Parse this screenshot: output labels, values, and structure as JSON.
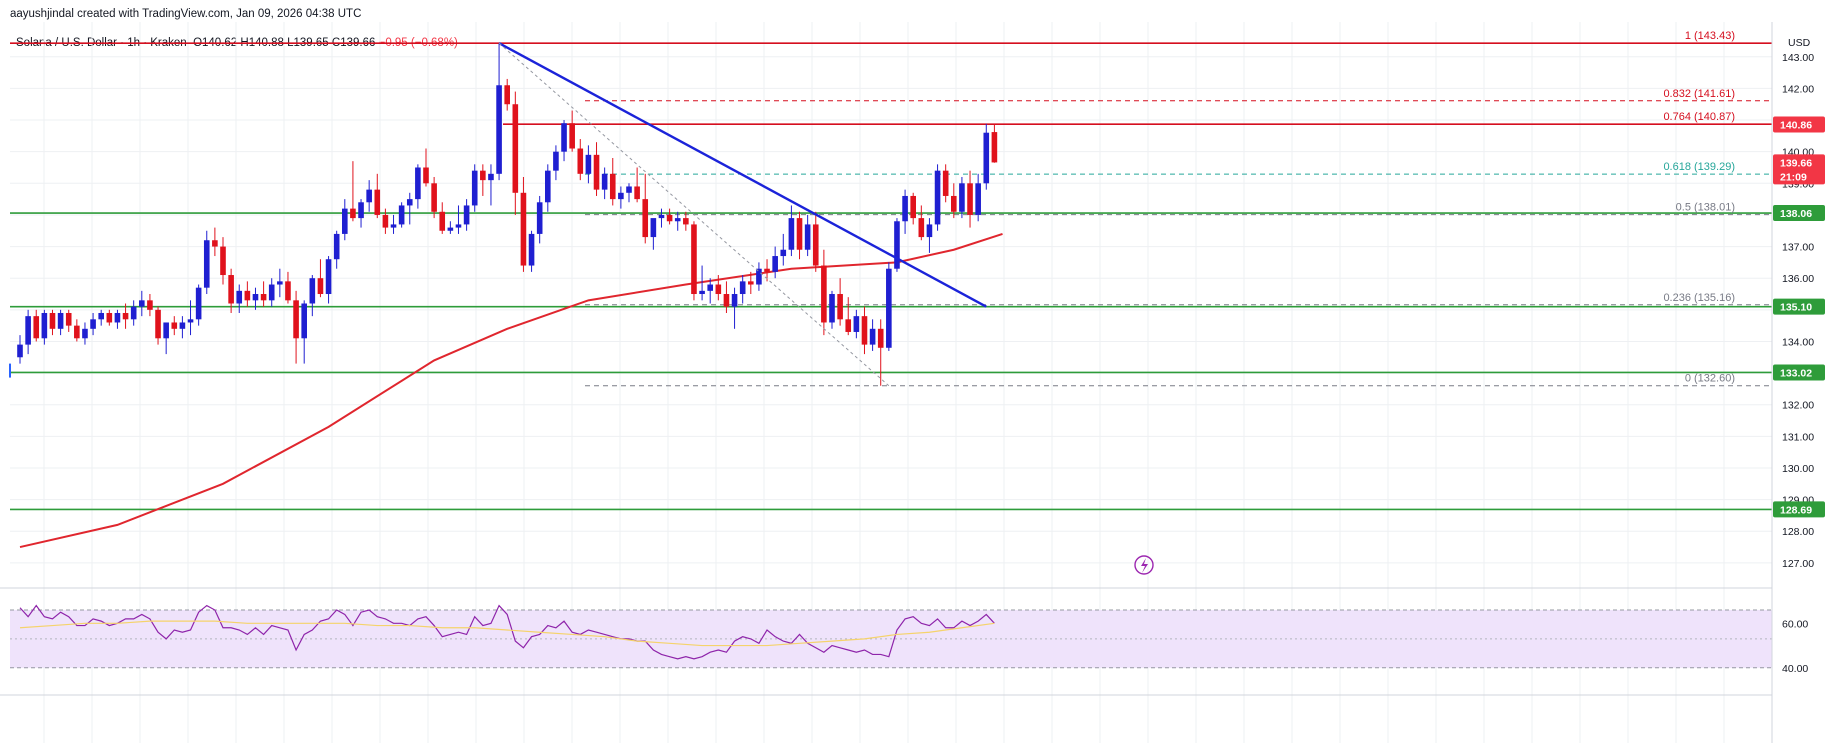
{
  "header": {
    "credit": "aayushjindal created with TradingView.com, Jan 09, 2026 04:38 UTC"
  },
  "legend": {
    "symbol": "Solana / U.S. Dollar · 1h · Kraken",
    "open_label": "O",
    "open": "140.62",
    "high_label": "H",
    "high": "140.88",
    "low_label": "L",
    "low": "139.65",
    "close_label": "C",
    "close": "139.66",
    "change": "−0.95 (−0.68%)"
  },
  "currency": "USD",
  "colors": {
    "up": "#1f1fd1",
    "down": "#e0121c",
    "support_line": "#2e9c3a",
    "resistance_line": "#d50f1f",
    "trend_line": "#1b23d9",
    "moving_average": "#e0262e",
    "fib_line": "#26a69a",
    "rsi": "#8e24aa",
    "rsi_band": "#efe3fb",
    "rsi_ma": "#f5d36b"
  },
  "chart_data": {
    "type": "candlestick",
    "title": "Solana / U.S. Dollar · 1h · Kraken",
    "ylabel": "USD",
    "ylim": [
      126.3,
      144.1
    ],
    "y_ticks": [
      "143.00",
      "142.00",
      "141.00",
      "140.00",
      "139.00",
      "138.00",
      "137.00",
      "136.00",
      "135.00",
      "134.00",
      "133.00",
      "132.00",
      "131.00",
      "130.00",
      "129.00",
      "128.00",
      "127.00"
    ],
    "price_tags": [
      {
        "value": 140.86,
        "label": "140.86",
        "color": "#f23645"
      },
      {
        "value": 139.66,
        "label": "139.66",
        "sub": "21:09",
        "color": "#f23645"
      },
      {
        "value": 138.06,
        "label": "138.06",
        "color": "#2e9c3a"
      },
      {
        "value": 135.1,
        "label": "135.10",
        "color": "#2e9c3a"
      },
      {
        "value": 133.02,
        "label": "133.02",
        "color": "#2e9c3a"
      },
      {
        "value": 128.69,
        "label": "128.69",
        "color": "#2e9c3a"
      }
    ],
    "horizontal_levels": [
      {
        "value": 143.43,
        "kind": "resistance"
      },
      {
        "value": 140.87,
        "kind": "resistance"
      },
      {
        "value": 138.06,
        "kind": "support"
      },
      {
        "value": 135.1,
        "kind": "support"
      },
      {
        "value": 133.02,
        "kind": "support"
      },
      {
        "value": 128.69,
        "kind": "support"
      }
    ],
    "fib_levels": [
      {
        "ratio": "1",
        "price": 143.43,
        "label": "1 (143.43)"
      },
      {
        "ratio": "0.832",
        "price": 141.61,
        "label": "0.832 (141.61)"
      },
      {
        "ratio": "0.764",
        "price": 140.87,
        "label": "0.764 (140.87)"
      },
      {
        "ratio": "0.618",
        "price": 139.29,
        "label": "0.618 (139.29)"
      },
      {
        "ratio": "0.5",
        "price": 138.01,
        "label": "0.5 (138.01)"
      },
      {
        "ratio": "0.236",
        "price": 135.16,
        "label": "0.236 (135.16)"
      },
      {
        "ratio": "0",
        "price": 132.6,
        "label": "0 (132.60)"
      }
    ],
    "candles": [
      [
        133.5,
        134.2,
        133.3,
        133.9
      ],
      [
        133.9,
        135.0,
        133.6,
        134.8
      ],
      [
        134.8,
        135.0,
        134.0,
        134.1
      ],
      [
        134.1,
        135.0,
        133.9,
        134.9
      ],
      [
        134.9,
        135.0,
        134.2,
        134.4
      ],
      [
        134.4,
        135.0,
        134.2,
        134.9
      ],
      [
        134.9,
        135.0,
        134.3,
        134.5
      ],
      [
        134.5,
        134.7,
        134.0,
        134.1
      ],
      [
        134.1,
        134.6,
        133.9,
        134.4
      ],
      [
        134.4,
        134.9,
        134.2,
        134.7
      ],
      [
        134.7,
        135.0,
        134.5,
        134.9
      ],
      [
        134.9,
        135.0,
        134.5,
        134.6
      ],
      [
        134.6,
        135.0,
        134.4,
        134.9
      ],
      [
        134.9,
        135.2,
        134.4,
        134.7
      ],
      [
        134.7,
        135.3,
        134.5,
        135.1
      ],
      [
        135.1,
        135.6,
        134.8,
        135.3
      ],
      [
        135.3,
        135.5,
        134.8,
        135.0
      ],
      [
        135.0,
        135.1,
        133.9,
        134.1
      ],
      [
        134.1,
        134.6,
        133.6,
        134.6
      ],
      [
        134.6,
        134.8,
        134.2,
        134.4
      ],
      [
        134.4,
        134.8,
        134.1,
        134.6
      ],
      [
        134.6,
        135.3,
        134.2,
        134.7
      ],
      [
        134.7,
        135.8,
        134.5,
        135.7
      ],
      [
        135.7,
        137.5,
        135.5,
        137.2
      ],
      [
        137.2,
        137.6,
        136.7,
        137.0
      ],
      [
        137.0,
        137.3,
        135.8,
        136.1
      ],
      [
        136.1,
        136.3,
        134.9,
        135.2
      ],
      [
        135.2,
        135.8,
        134.9,
        135.6
      ],
      [
        135.6,
        135.9,
        135.1,
        135.3
      ],
      [
        135.3,
        135.7,
        135.0,
        135.5
      ],
      [
        135.5,
        135.9,
        135.1,
        135.3
      ],
      [
        135.3,
        136.0,
        135.1,
        135.8
      ],
      [
        135.8,
        136.3,
        135.4,
        135.9
      ],
      [
        135.9,
        136.2,
        135.2,
        135.3
      ],
      [
        135.3,
        135.6,
        133.3,
        134.1
      ],
      [
        134.1,
        135.3,
        133.3,
        135.2
      ],
      [
        135.2,
        136.1,
        134.8,
        136.0
      ],
      [
        136.0,
        136.6,
        135.4,
        135.5
      ],
      [
        135.5,
        136.7,
        135.2,
        136.6
      ],
      [
        136.6,
        137.5,
        136.3,
        137.4
      ],
      [
        137.4,
        138.5,
        137.2,
        138.2
      ],
      [
        138.2,
        139.7,
        137.8,
        137.9
      ],
      [
        137.9,
        138.5,
        137.6,
        138.4
      ],
      [
        138.4,
        139.1,
        138.1,
        138.8
      ],
      [
        138.8,
        139.3,
        137.9,
        138.0
      ],
      [
        138.0,
        138.2,
        137.4,
        137.6
      ],
      [
        137.6,
        138.0,
        137.4,
        137.7
      ],
      [
        137.7,
        138.4,
        137.6,
        138.3
      ],
      [
        138.3,
        138.7,
        137.7,
        138.5
      ],
      [
        138.5,
        139.6,
        138.2,
        139.5
      ],
      [
        139.5,
        140.1,
        138.9,
        139.0
      ],
      [
        139.0,
        139.2,
        137.9,
        138.1
      ],
      [
        138.1,
        138.4,
        137.4,
        137.5
      ],
      [
        137.5,
        137.8,
        137.4,
        137.6
      ],
      [
        137.6,
        138.3,
        137.4,
        137.7
      ],
      [
        137.7,
        138.5,
        137.5,
        138.3
      ],
      [
        138.3,
        139.6,
        138.1,
        139.4
      ],
      [
        139.4,
        139.6,
        138.6,
        139.1
      ],
      [
        139.1,
        139.6,
        138.3,
        139.3
      ],
      [
        139.3,
        143.43,
        139.1,
        142.1
      ],
      [
        142.1,
        142.3,
        141.3,
        141.5
      ],
      [
        141.5,
        141.9,
        138.0,
        138.7
      ],
      [
        138.7,
        139.2,
        136.2,
        136.4
      ],
      [
        136.4,
        137.5,
        136.2,
        137.4
      ],
      [
        137.4,
        138.6,
        137.1,
        138.4
      ],
      [
        138.4,
        139.6,
        138.1,
        139.4
      ],
      [
        139.4,
        140.2,
        139.1,
        140.0
      ],
      [
        140.0,
        141.0,
        139.7,
        140.9
      ],
      [
        140.9,
        141.3,
        140.0,
        140.1
      ],
      [
        140.1,
        140.4,
        139.1,
        139.3
      ],
      [
        139.3,
        140.2,
        139.0,
        139.9
      ],
      [
        139.9,
        140.3,
        138.6,
        138.8
      ],
      [
        138.8,
        139.5,
        138.5,
        139.3
      ],
      [
        139.3,
        139.8,
        138.3,
        138.5
      ],
      [
        138.5,
        138.9,
        138.2,
        138.7
      ],
      [
        138.7,
        139.0,
        138.4,
        138.9
      ],
      [
        138.9,
        139.5,
        138.4,
        138.5
      ],
      [
        138.5,
        139.3,
        137.1,
        137.3
      ],
      [
        137.3,
        137.8,
        136.9,
        137.9
      ],
      [
        137.9,
        138.2,
        137.6,
        138.0
      ],
      [
        138.0,
        138.2,
        137.7,
        137.8
      ],
      [
        137.8,
        138.1,
        137.5,
        137.9
      ],
      [
        137.9,
        138.1,
        137.5,
        137.7
      ],
      [
        137.7,
        137.8,
        135.3,
        135.5
      ],
      [
        135.5,
        136.4,
        135.3,
        135.6
      ],
      [
        135.6,
        136.0,
        135.2,
        135.8
      ],
      [
        135.8,
        136.1,
        135.3,
        135.5
      ],
      [
        135.5,
        135.9,
        134.9,
        135.1
      ],
      [
        135.1,
        135.7,
        134.4,
        135.5
      ],
      [
        135.5,
        136.1,
        135.2,
        135.9
      ],
      [
        135.9,
        136.2,
        135.5,
        135.8
      ],
      [
        135.8,
        136.5,
        135.6,
        136.3
      ],
      [
        136.3,
        136.6,
        135.9,
        136.2
      ],
      [
        136.2,
        137.0,
        136.0,
        136.7
      ],
      [
        136.7,
        137.4,
        136.4,
        136.9
      ],
      [
        136.9,
        138.3,
        136.7,
        137.9
      ],
      [
        137.9,
        138.1,
        136.6,
        136.9
      ],
      [
        136.9,
        138.0,
        136.7,
        137.7
      ],
      [
        137.7,
        138.1,
        136.2,
        136.4
      ],
      [
        136.4,
        136.9,
        134.2,
        134.6
      ],
      [
        134.6,
        135.6,
        134.4,
        135.5
      ],
      [
        135.5,
        136.0,
        134.5,
        134.7
      ],
      [
        134.7,
        135.4,
        134.2,
        134.3
      ],
      [
        134.3,
        135.0,
        134.1,
        134.8
      ],
      [
        134.8,
        135.1,
        133.6,
        133.9
      ],
      [
        133.9,
        134.7,
        133.7,
        134.4
      ],
      [
        134.4,
        134.7,
        132.6,
        133.8
      ],
      [
        133.8,
        136.5,
        133.7,
        136.3
      ],
      [
        136.3,
        137.9,
        136.2,
        137.8
      ],
      [
        137.8,
        138.8,
        137.4,
        138.6
      ],
      [
        138.6,
        138.7,
        137.7,
        137.9
      ],
      [
        137.9,
        138.3,
        137.2,
        137.3
      ],
      [
        137.3,
        137.9,
        136.8,
        137.7
      ],
      [
        137.7,
        139.6,
        137.5,
        139.4
      ],
      [
        139.4,
        139.6,
        138.4,
        138.6
      ],
      [
        138.6,
        139.0,
        137.9,
        138.1
      ],
      [
        138.1,
        139.2,
        137.9,
        139.0
      ],
      [
        139.0,
        139.4,
        137.6,
        138.0
      ],
      [
        138.0,
        139.3,
        137.8,
        139.0
      ],
      [
        139.0,
        140.88,
        138.8,
        140.6
      ],
      [
        140.62,
        140.88,
        139.65,
        139.66
      ]
    ],
    "moving_average": [
      [
        0,
        127.5
      ],
      [
        12,
        128.2
      ],
      [
        25,
        129.5
      ],
      [
        38,
        131.3
      ],
      [
        51,
        133.4
      ],
      [
        60,
        134.4
      ],
      [
        70,
        135.3
      ],
      [
        82,
        135.8
      ],
      [
        95,
        136.3
      ],
      [
        108,
        136.5
      ],
      [
        115,
        136.9
      ],
      [
        121,
        137.4
      ]
    ],
    "trend_line": [
      [
        59,
        143.43
      ],
      [
        119,
        135.1
      ]
    ],
    "rsi": {
      "ylim": [
        30,
        75
      ],
      "band": [
        40,
        66
      ],
      "ticks": [
        "60.00",
        "40.00"
      ],
      "values": [
        67,
        63,
        68,
        63,
        62,
        65,
        63,
        59,
        59,
        62,
        61,
        59,
        60,
        62,
        62,
        64,
        62,
        56,
        53,
        57,
        56,
        57,
        65,
        68,
        66,
        58,
        58,
        57,
        55,
        58,
        55,
        59,
        58,
        57,
        48,
        55,
        57,
        61,
        62,
        66,
        64,
        59,
        65,
        66,
        63,
        62,
        60,
        60,
        59,
        62,
        63,
        59,
        54,
        55,
        56,
        55,
        63,
        59,
        60,
        68,
        64,
        52,
        49,
        54,
        55,
        59,
        58,
        61,
        56,
        55,
        57,
        56,
        55,
        54,
        53,
        53,
        52,
        52,
        48,
        46,
        45,
        44,
        45,
        44,
        45,
        47,
        48,
        47,
        52,
        54,
        53,
        51,
        57,
        54,
        52,
        51,
        55,
        51,
        49,
        47,
        50,
        49,
        48,
        47,
        48,
        46,
        46,
        45,
        57,
        62,
        63,
        60,
        59,
        62,
        58,
        58,
        61,
        59,
        61,
        64,
        60
      ],
      "ma": [
        58,
        59,
        60,
        60,
        61,
        61,
        61,
        60,
        60,
        60,
        60,
        59,
        59,
        58,
        58,
        57,
        56,
        55,
        54,
        52,
        51,
        50,
        50,
        50,
        51,
        52,
        53,
        55,
        56,
        58,
        60
      ]
    }
  }
}
